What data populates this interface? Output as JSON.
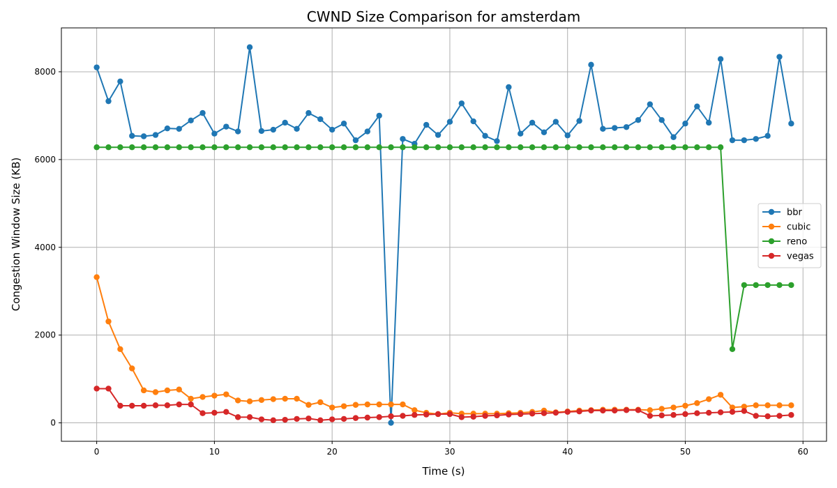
{
  "chart_data": {
    "type": "line",
    "title": "CWND Size Comparison for amsterdam",
    "xlabel": "Time (s)",
    "ylabel": "Congestion Window Size (KB)",
    "xlim": [
      -3,
      62
    ],
    "ylim": [
      -420,
      9000
    ],
    "xticks": [
      0,
      10,
      20,
      30,
      40,
      50,
      60
    ],
    "yticks": [
      0,
      2000,
      4000,
      6000,
      8000
    ],
    "grid": true,
    "legend_position": "center-right",
    "x": [
      0,
      1,
      2,
      3,
      4,
      5,
      6,
      7,
      8,
      9,
      10,
      11,
      12,
      13,
      14,
      15,
      16,
      17,
      18,
      19,
      20,
      21,
      22,
      23,
      24,
      25,
      26,
      27,
      28,
      29,
      30,
      31,
      32,
      33,
      34,
      35,
      36,
      37,
      38,
      39,
      40,
      41,
      42,
      43,
      44,
      45,
      46,
      47,
      48,
      49,
      50,
      51,
      52,
      53,
      54,
      55,
      56,
      57,
      58,
      59
    ],
    "series": [
      {
        "name": "bbr",
        "color": "#1f77b4",
        "values": [
          8100,
          7330,
          7780,
          6540,
          6530,
          6560,
          6710,
          6700,
          6890,
          7060,
          6590,
          6750,
          6640,
          8560,
          6650,
          6680,
          6840,
          6700,
          7060,
          6920,
          6680,
          6820,
          6440,
          6640,
          7000,
          0,
          6470,
          6360,
          6790,
          6560,
          6860,
          7280,
          6870,
          6540,
          6420,
          7650,
          6590,
          6840,
          6620,
          6860,
          6550,
          6880,
          8160,
          6700,
          6720,
          6740,
          6900,
          7260,
          6900,
          6510,
          6820,
          7210,
          6840,
          8290,
          6440,
          6440,
          6470,
          6540,
          8340,
          6820
        ]
      },
      {
        "name": "cubic",
        "color": "#ff7f0e",
        "values": [
          3320,
          2310,
          1680,
          1240,
          740,
          700,
          740,
          760,
          550,
          590,
          620,
          650,
          510,
          490,
          520,
          540,
          550,
          550,
          410,
          470,
          350,
          380,
          410,
          420,
          420,
          420,
          420,
          290,
          230,
          200,
          230,
          210,
          210,
          210,
          210,
          220,
          230,
          250,
          280,
          240,
          260,
          280,
          290,
          300,
          300,
          300,
          300,
          290,
          320,
          350,
          390,
          450,
          540,
          640,
          350,
          370,
          400,
          400,
          400,
          400
        ]
      },
      {
        "name": "reno",
        "color": "#2ca02c",
        "values": [
          6280,
          6280,
          6280,
          6280,
          6280,
          6280,
          6280,
          6280,
          6280,
          6280,
          6280,
          6280,
          6280,
          6280,
          6280,
          6280,
          6280,
          6280,
          6280,
          6280,
          6280,
          6280,
          6280,
          6280,
          6280,
          6280,
          6280,
          6280,
          6280,
          6280,
          6280,
          6280,
          6280,
          6280,
          6280,
          6280,
          6280,
          6280,
          6280,
          6280,
          6280,
          6280,
          6280,
          6280,
          6280,
          6280,
          6280,
          6280,
          6280,
          6280,
          6280,
          6280,
          6280,
          6280,
          1680,
          3140,
          3140,
          3140,
          3140,
          3140
        ]
      },
      {
        "name": "vegas",
        "color": "#d62728",
        "values": [
          780,
          780,
          390,
          390,
          390,
          400,
          400,
          420,
          420,
          220,
          230,
          250,
          130,
          130,
          80,
          60,
          70,
          90,
          100,
          60,
          80,
          90,
          110,
          120,
          130,
          150,
          160,
          180,
          190,
          200,
          200,
          130,
          140,
          160,
          170,
          190,
          200,
          210,
          220,
          230,
          250,
          260,
          280,
          280,
          280,
          290,
          290,
          160,
          170,
          180,
          200,
          220,
          230,
          240,
          250,
          270,
          160,
          150,
          160,
          180
        ]
      }
    ]
  }
}
